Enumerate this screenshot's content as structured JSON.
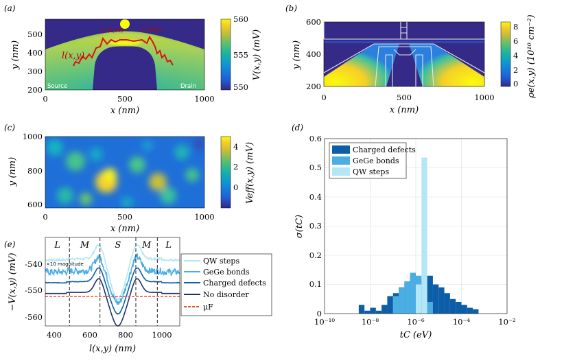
{
  "panels": {
    "a": {
      "label": "(a)",
      "xlabel": "x (nm)",
      "ylabel": "y (nm)",
      "xticks": [
        "0",
        "500",
        "1000"
      ],
      "yticks": [
        "200",
        "300",
        "400",
        "500"
      ],
      "cbar_label": "V(x,y) (mV)",
      "cbar_ticks": [
        "550",
        "555",
        "560"
      ],
      "path_label": "l(x,y)",
      "text_source": "Source",
      "text_drain": "Drain",
      "ann_left": "l^(L/M)",
      "ann_right": "l^(M/L)"
    },
    "b": {
      "label": "(b)",
      "xlabel": "x (nm)",
      "ylabel": "y (nm)",
      "xticks": [
        "0",
        "500",
        "1000"
      ],
      "yticks": [
        "200",
        "400",
        "600"
      ],
      "cbar_label": "ρe(x,y) (10¹⁰ cm⁻²)",
      "cbar_ticks": [
        "0",
        "2",
        "4",
        "6",
        "8"
      ]
    },
    "c": {
      "label": "(c)",
      "xlabel": "x (nm)",
      "ylabel": "y (nm)",
      "xticks": [
        "0",
        "500",
        "1000"
      ],
      "yticks": [
        "600",
        "800",
        "1000"
      ],
      "cbar_label": "Veff(x,y) (mV)",
      "cbar_ticks": [
        "0",
        "2",
        "4"
      ]
    },
    "e": {
      "label": "(e)",
      "xlabel": "l(x,y) (nm)",
      "ylabel": "−V(x,y) (mV)",
      "xticks": [
        "400",
        "600",
        "800",
        "1000"
      ],
      "yticks": [
        "-540",
        "-550",
        "-560"
      ],
      "regions": [
        "L",
        "M",
        "S",
        "M",
        "L"
      ],
      "magnitude_note": "×10 magnitude",
      "legend": [
        "QW steps",
        "GeGe bonds",
        "Charged defects",
        "No disorder",
        "μF"
      ]
    },
    "d": {
      "label": "(d)",
      "xlabel": "tC (eV)",
      "ylabel": "σ(tC)",
      "xticks": [
        "10⁻¹⁰",
        "10⁻⁸",
        "10⁻⁶",
        "10⁻⁴",
        "10⁻²"
      ],
      "yticks": [
        "0",
        "0.1",
        "0.2",
        "0.3",
        "0.4",
        "0.5",
        "0.6"
      ]
    }
  },
  "colors": {
    "charged": "#0c5ea8",
    "gege": "#4aaee3",
    "qw": "#b3e6f7",
    "nodis": "#20306a",
    "mu": "#e3562a",
    "red": "#e01010"
  },
  "chart_data": [
    {
      "type": "heatmap",
      "panel": "a",
      "title": "",
      "xlabel": "x (nm)",
      "ylabel": "y (nm)",
      "xlim": [
        0,
        1000
      ],
      "ylim": [
        200,
        580
      ],
      "colorbar": {
        "label": "V(x,y) (mV)",
        "range": [
          550,
          560
        ]
      },
      "annotations": [
        "Source",
        "Drain",
        "l(x,y)"
      ]
    },
    {
      "type": "heatmap",
      "panel": "b",
      "title": "",
      "xlabel": "x (nm)",
      "ylabel": "y (nm)",
      "xlim": [
        0,
        1000
      ],
      "ylim": [
        200,
        600
      ],
      "colorbar": {
        "label": "ρe(x,y) (10¹⁰ cm⁻²)",
        "range": [
          0,
          9
        ]
      }
    },
    {
      "type": "heatmap",
      "panel": "c",
      "title": "",
      "xlabel": "x (nm)",
      "ylabel": "y (nm)",
      "xlim": [
        0,
        1000
      ],
      "ylim": [
        580,
        1000
      ],
      "colorbar": {
        "label": "Veff(x,y) (mV)",
        "range": [
          -1.5,
          5
        ]
      }
    },
    {
      "type": "line",
      "panel": "e",
      "xlabel": "l(x,y) (nm)",
      "ylabel": "−V(x,y) (mV)",
      "xlim": [
        350,
        1100
      ],
      "ylim": [
        -566,
        -533
      ],
      "region_boundaries": [
        485,
        655,
        855,
        975
      ],
      "regions": [
        "L",
        "M",
        "S",
        "M",
        "L"
      ],
      "series": [
        {
          "name": "QW steps",
          "baseline": -541,
          "dip": 15,
          "noise": 0.4
        },
        {
          "name": "GeGe bonds",
          "baseline": -545.5,
          "dip": 12,
          "noise": 1.2
        },
        {
          "name": "Charged defects",
          "baseline": -549.5,
          "dip": 12,
          "noise": 0.1
        },
        {
          "name": "No disorder",
          "baseline": -553.5,
          "dip": 12.5,
          "noise": 0
        },
        {
          "name": "μF",
          "constant": -555
        }
      ]
    },
    {
      "type": "bar",
      "panel": "d",
      "title": "",
      "xlabel": "tC (eV)",
      "ylabel": "σ(tC)",
      "xscale": "log",
      "xlim_exp": [
        -10,
        -2
      ],
      "ylim": [
        0,
        0.6
      ],
      "bin_width_decades": 0.25,
      "legend_position": "top-left",
      "series": [
        {
          "name": "Charged defects",
          "color_key": "charged",
          "bins": [
            [
              -8.5,
              0.03
            ],
            [
              -8.25,
              0.01
            ],
            [
              -8.0,
              0.02
            ],
            [
              -7.75,
              0.01
            ],
            [
              -7.5,
              0.03
            ],
            [
              -7.25,
              0.06
            ],
            [
              -7.0,
              0.07
            ],
            [
              -6.75,
              0.09
            ],
            [
              -6.5,
              0.11
            ],
            [
              -6.25,
              0.13
            ],
            [
              -6.0,
              0.12
            ],
            [
              -5.75,
              0.1
            ],
            [
              -5.5,
              0.13
            ],
            [
              -5.25,
              0.1
            ],
            [
              -5.0,
              0.09
            ],
            [
              -4.75,
              0.07
            ],
            [
              -4.5,
              0.05
            ],
            [
              -4.25,
              0.04
            ],
            [
              -4.0,
              0.03
            ],
            [
              -3.75,
              0.02
            ],
            [
              -3.5,
              0.015
            ]
          ]
        },
        {
          "name": "GeGe bonds",
          "color_key": "gege",
          "bins": [
            [
              -7.0,
              0.06
            ],
            [
              -6.75,
              0.09
            ],
            [
              -6.5,
              0.11
            ],
            [
              -6.25,
              0.14
            ],
            [
              -6.0,
              0.13
            ],
            [
              -5.75,
              0.09
            ],
            [
              -5.5,
              0.04
            ]
          ]
        },
        {
          "name": "QW steps",
          "color_key": "qw",
          "bins": [
            [
              -6.0,
              0.1
            ],
            [
              -5.75,
              0.535
            ]
          ]
        }
      ]
    }
  ]
}
